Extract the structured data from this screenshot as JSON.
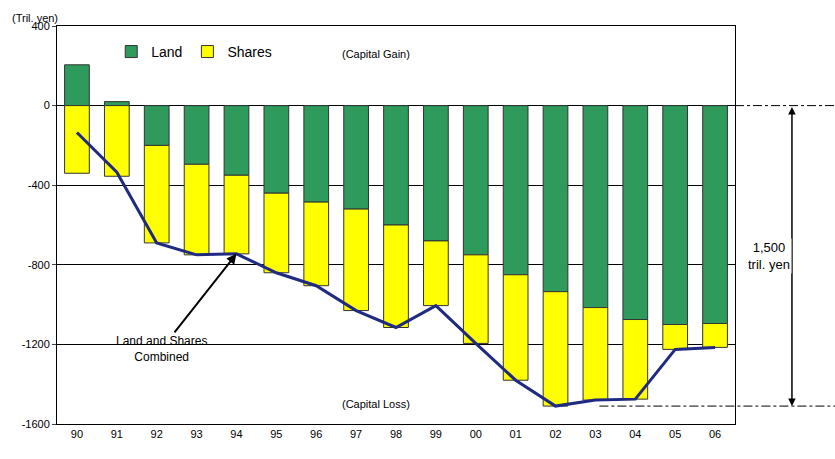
{
  "chart_data": {
    "type": "bar",
    "stacked": true,
    "ylabel": "(Tril. yen)",
    "categories": [
      "90",
      "91",
      "92",
      "93",
      "94",
      "95",
      "96",
      "97",
      "98",
      "99",
      "00",
      "01",
      "02",
      "03",
      "04",
      "05",
      "06"
    ],
    "series": [
      {
        "name": "Land",
        "color": "#2e9a5c",
        "type": "bar",
        "values": [
          205,
          20,
          -200,
          -295,
          -350,
          -440,
          -485,
          -520,
          -600,
          -680,
          -750,
          -850,
          -935,
          -1015,
          -1075,
          -1100,
          -1095
        ]
      },
      {
        "name": "Shares",
        "color": "#ffff00",
        "type": "bar",
        "values": [
          -340,
          -355,
          -490,
          -455,
          -395,
          -400,
          -420,
          -510,
          -515,
          -325,
          -445,
          -530,
          -575,
          -465,
          -400,
          -125,
          -120
        ]
      },
      {
        "name": "Land and Shares Combined",
        "color": "#1f2a80",
        "type": "line",
        "values": [
          -135,
          -335,
          -690,
          -750,
          -745,
          -840,
          -905,
          -1030,
          -1115,
          -1005,
          -1195,
          -1380,
          -1510,
          -1480,
          -1475,
          -1225,
          -1215
        ]
      }
    ],
    "annotations": [
      "(Capital Gain)",
      "(Capital Loss)",
      "1,500 tril. yen"
    ],
    "ylim": [
      -1600,
      400
    ],
    "yticks": [
      -1600,
      -1200,
      -800,
      -400,
      0,
      400
    ],
    "grid": true,
    "legend": "top left"
  }
}
